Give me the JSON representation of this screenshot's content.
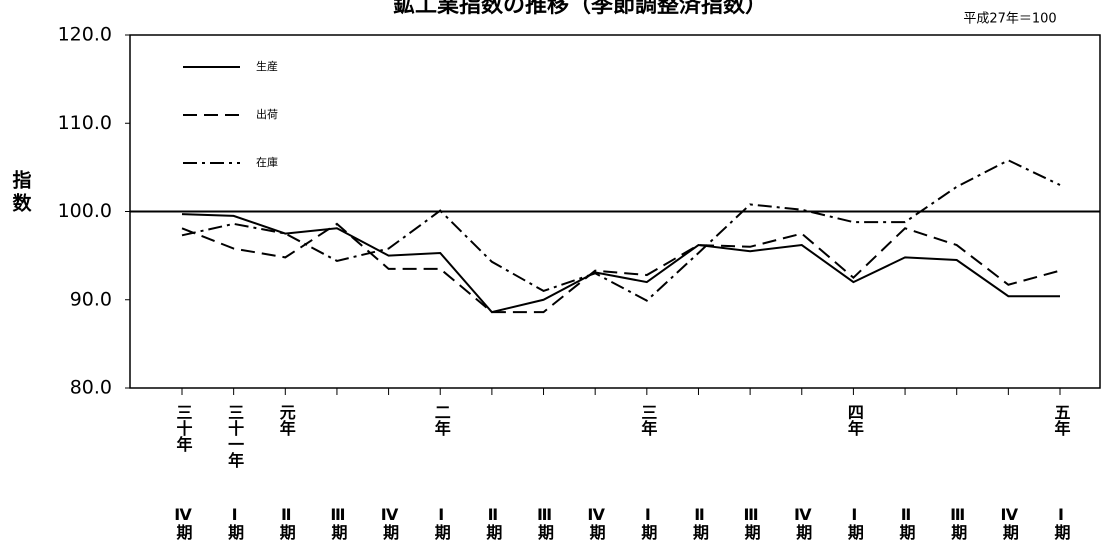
{
  "chart_data": {
    "type": "line",
    "title": "鉱工業指数の推移（季節調整済指数）",
    "subtitle": "平成27年＝100",
    "y_label": "指数",
    "categories": [
      "Ⅳ期",
      "Ⅰ期",
      "Ⅱ期",
      "Ⅲ期",
      "Ⅳ期",
      "Ⅰ期",
      "Ⅱ期",
      "Ⅲ期",
      "Ⅳ期",
      "Ⅰ期",
      "Ⅱ期",
      "Ⅲ期",
      "Ⅳ期",
      "Ⅰ期",
      "Ⅱ期",
      "Ⅲ期",
      "Ⅳ期",
      "Ⅰ期"
    ],
    "year_labels": [
      "三十年",
      "三十一年",
      "元年",
      null,
      null,
      "二年",
      null,
      null,
      null,
      "三年",
      null,
      null,
      null,
      "四年",
      null,
      null,
      null,
      "五年"
    ],
    "series": [
      {
        "name": "生産",
        "color": "#000000",
        "dash": "none",
        "values": [
          99.7,
          99.5,
          97.5,
          98.1,
          95.0,
          95.3,
          88.6,
          90.0,
          93.1,
          92.0,
          96.2,
          95.5,
          96.2,
          92.0,
          94.8,
          94.5,
          90.4,
          90.4
        ]
      },
      {
        "name": "出荷",
        "color": "#000000",
        "dash": "14 7",
        "values": [
          98.1,
          95.8,
          94.8,
          98.6,
          93.5,
          93.5,
          88.6,
          88.6,
          93.3,
          92.8,
          96.2,
          96.0,
          97.5,
          92.5,
          98.1,
          96.2,
          91.7,
          93.3
        ]
      },
      {
        "name": "在庫",
        "color": "#000000",
        "dash": "14 5 3 5",
        "values": [
          97.3,
          98.6,
          97.5,
          94.4,
          95.8,
          100.1,
          94.3,
          91.0,
          93.0,
          89.9,
          95.3,
          100.8,
          100.2,
          98.8,
          98.8,
          102.8,
          105.8,
          103.0
        ]
      }
    ],
    "ylim": [
      80,
      120
    ],
    "yticks": [
      {
        "value": 80,
        "label": "80.0"
      },
      {
        "value": 90,
        "label": "90.0"
      },
      {
        "value": 100,
        "label": "100.0"
      },
      {
        "value": 110,
        "label": "110.0"
      },
      {
        "value": 120,
        "label": "120.0"
      }
    ],
    "reference_line": 100,
    "grid": false
  }
}
